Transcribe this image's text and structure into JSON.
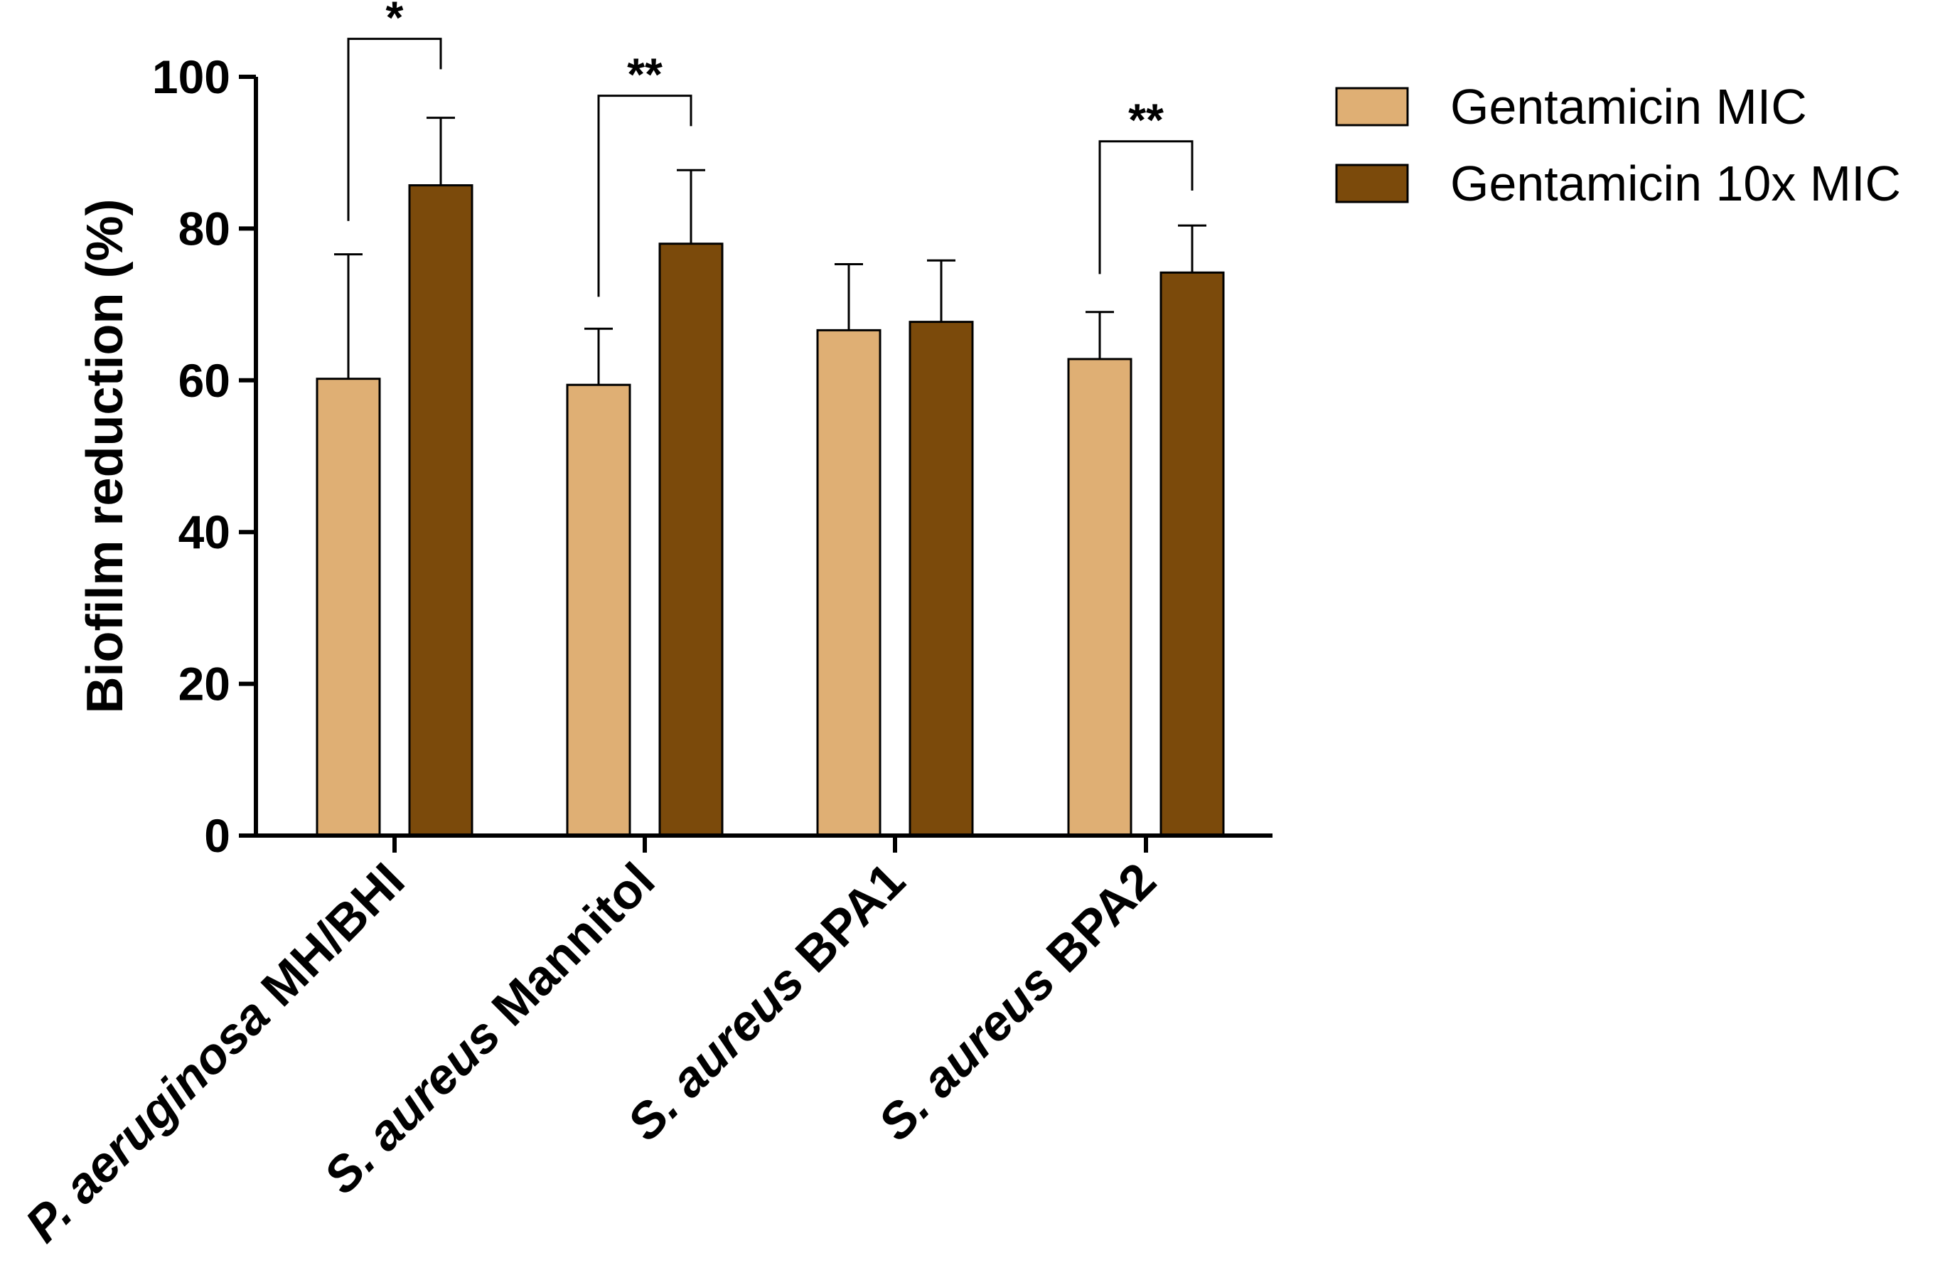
{
  "chart_data": {
    "type": "bar",
    "title": "",
    "xlabel": "",
    "ylabel": "Biofilm reduction (%)",
    "ylim": [
      0,
      100
    ],
    "yticks": [
      0,
      20,
      40,
      60,
      80,
      100
    ],
    "grid": false,
    "legend_position": "top-right",
    "categories": [
      {
        "italic": "P. aeruginosa",
        "rest": " MH/BHI"
      },
      {
        "italic": "S. aureus",
        "rest": " Mannitol"
      },
      {
        "italic": "S. aureus",
        "rest": " BPA1"
      },
      {
        "italic": "S. aureus",
        "rest": " BPA2"
      }
    ],
    "series": [
      {
        "name": "Gentamicin MIC",
        "color": "#DFAF74",
        "values": [
          60.2,
          59.4,
          66.6,
          62.8
        ],
        "errors": [
          16.4,
          7.4,
          8.7,
          6.2
        ]
      },
      {
        "name": "Gentamicin 10x MIC",
        "color": "#7B4A0B",
        "values": [
          85.7,
          78.0,
          67.7,
          74.2
        ],
        "errors": [
          8.9,
          9.7,
          8.1,
          6.2
        ]
      }
    ],
    "significance": [
      {
        "category_index": 0,
        "label": "*",
        "left_base": 81,
        "right_base": 101,
        "top": 105
      },
      {
        "category_index": 1,
        "label": "**",
        "left_base": 71,
        "right_base": 93.5,
        "top": 97.5
      },
      {
        "category_index": 3,
        "label": "**",
        "left_base": 74,
        "right_base": 85,
        "top": 91.5
      }
    ]
  }
}
